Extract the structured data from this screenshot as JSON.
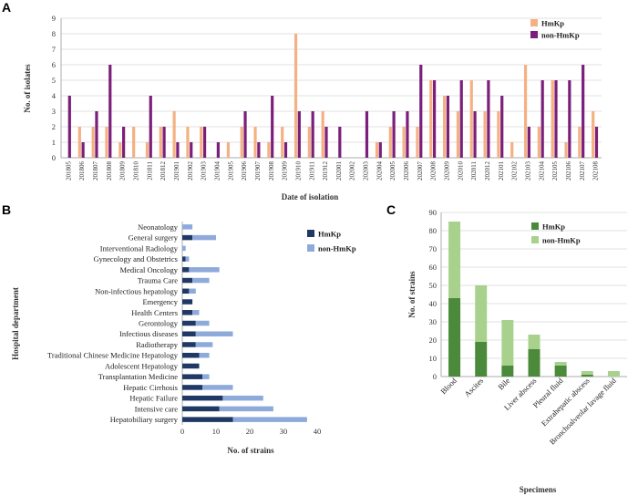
{
  "chart_data": [
    {
      "panel": "A",
      "type": "bar",
      "xlabel": "Date of isolation",
      "ylabel": "No. of isolates",
      "ylim": [
        0,
        9
      ],
      "yticks": [
        0,
        1,
        2,
        3,
        4,
        5,
        6,
        7,
        8,
        9
      ],
      "categories": [
        "201805",
        "201806",
        "201807",
        "201808",
        "201809",
        "201810",
        "201811",
        "201812",
        "201901",
        "201902",
        "201903",
        "201904",
        "201905",
        "201906",
        "201907",
        "201908",
        "201909",
        "201910",
        "201911",
        "201912",
        "202001",
        "202002",
        "202003",
        "202004",
        "202005",
        "202006",
        "202007",
        "202008",
        "202009",
        "202010",
        "202011",
        "202012",
        "202101",
        "202102",
        "202103",
        "202104",
        "202105",
        "202106",
        "202107",
        "202108"
      ],
      "series": [
        {
          "name": "HmKp",
          "color": "#f4b183",
          "values": [
            0,
            2,
            2,
            2,
            1,
            2,
            1,
            2,
            3,
            2,
            2,
            0,
            1,
            2,
            2,
            1,
            2,
            8,
            2,
            3,
            0,
            0,
            0,
            1,
            2,
            2,
            2,
            5,
            4,
            3,
            5,
            3,
            3,
            1,
            6,
            2,
            5,
            1,
            2,
            3
          ]
        },
        {
          "name": "non-HmKp",
          "color": "#7b1f7b",
          "values": [
            4,
            1,
            3,
            6,
            2,
            0,
            4,
            2,
            1,
            1,
            2,
            1,
            0,
            3,
            1,
            4,
            1,
            3,
            3,
            2,
            2,
            0,
            3,
            1,
            3,
            3,
            6,
            5,
            4,
            5,
            3,
            5,
            4,
            0,
            2,
            5,
            5,
            5,
            6,
            2
          ]
        }
      ],
      "legend": "top-right"
    },
    {
      "panel": "B",
      "type": "bar",
      "orientation": "horizontal",
      "stacked": true,
      "xlabel": "No. of strains",
      "ylabel": "Hospital department",
      "xlim": [
        0,
        40
      ],
      "xticks": [
        0,
        10,
        20,
        30,
        40
      ],
      "categories": [
        "Neonatology",
        "General surgery",
        "Interventional Radiology",
        "Gynecology and Obstetrics",
        "Medical Oncology",
        "Trauma Care",
        "Non-infectious hepatology",
        "Emergency",
        "Health Centers",
        "Gerontology",
        "Infectious diseases",
        "Radiotherapy",
        "Traditional Chinese Medicine Hepatology",
        "Adolescent Hepatology",
        "Transplantation Medicine",
        "Hepatic Cirrhosis",
        "Hepatic Failure",
        "Intensive care",
        "Hepatobiliary surgery"
      ],
      "series": [
        {
          "name": "HmKp",
          "color": "#1f3864",
          "values": [
            0,
            3,
            0,
            1,
            2,
            3,
            2,
            3,
            3,
            4,
            4,
            4,
            5,
            5,
            6,
            6,
            12,
            11,
            15
          ]
        },
        {
          "name": "non-HmKp",
          "color": "#8eaadb",
          "values": [
            3,
            7,
            1,
            1,
            9,
            5,
            2,
            0,
            2,
            4,
            11,
            5,
            3,
            0,
            2,
            9,
            12,
            16,
            22
          ]
        }
      ],
      "legend": "top-right"
    },
    {
      "panel": "C",
      "type": "bar",
      "stacked": true,
      "xlabel": "Specimens",
      "ylabel": "No. of strains",
      "ylim": [
        0,
        90
      ],
      "yticks": [
        0,
        10,
        20,
        30,
        40,
        50,
        60,
        70,
        80,
        90
      ],
      "categories": [
        "Blood",
        "Ascites",
        "Bile",
        "Liver abscess",
        "Pleural fluid",
        "Extrahepatic abscess",
        "Bronchoalveolar lavage fluid"
      ],
      "series": [
        {
          "name": "HmKp",
          "color": "#4a8a3a",
          "values": [
            43,
            19,
            6,
            15,
            6,
            1,
            0
          ]
        },
        {
          "name": "non-HmKp",
          "color": "#a9d18e",
          "values": [
            42,
            31,
            25,
            8,
            2,
            2,
            3
          ]
        }
      ],
      "legend": "top-right"
    }
  ],
  "panels": {
    "a": "A",
    "b": "B",
    "c": "C"
  }
}
